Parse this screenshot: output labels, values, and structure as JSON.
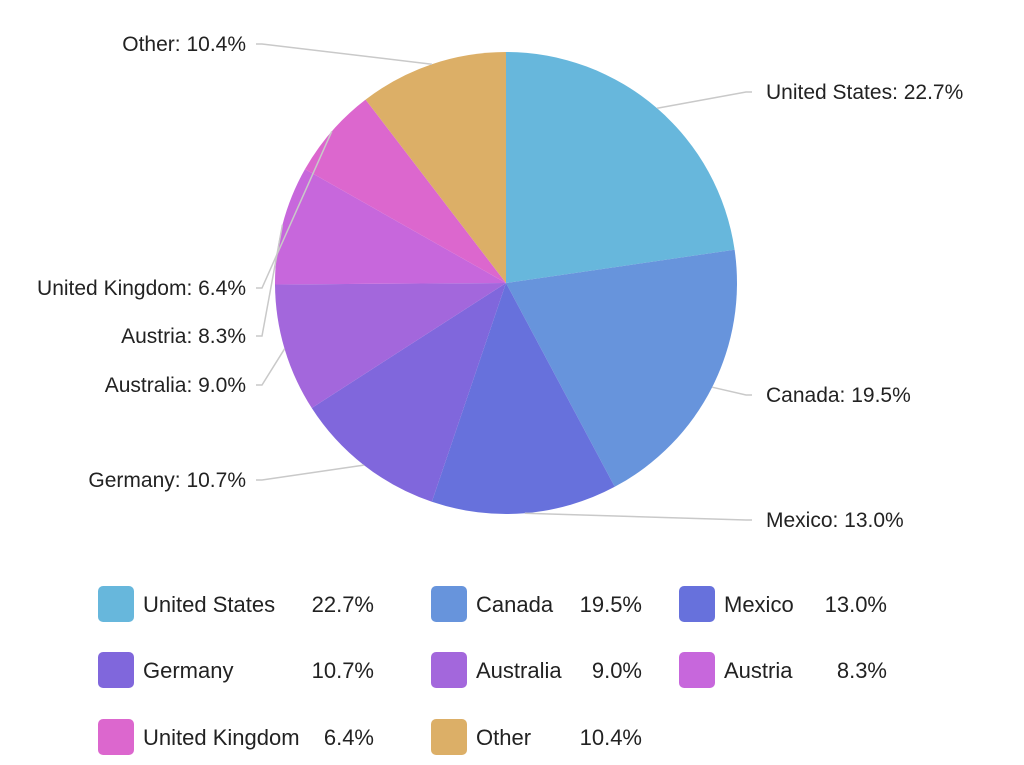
{
  "chart_data": {
    "type": "pie",
    "title": "",
    "start_angle_deg": 0,
    "direction": "clockwise",
    "legend": {
      "position": "bottom",
      "columns": 3
    },
    "slices": [
      {
        "name": "United States",
        "value": 22.7,
        "label": "United States: 22.7%",
        "legend_value": "22.7%",
        "color": "#67b7dc"
      },
      {
        "name": "Canada",
        "value": 19.5,
        "label": "Canada: 19.5%",
        "legend_value": "19.5%",
        "color": "#6794dc"
      },
      {
        "name": "Mexico",
        "value": 13.0,
        "label": "Mexico: 13.0%",
        "legend_value": "13.0%",
        "color": "#6771dc"
      },
      {
        "name": "Germany",
        "value": 10.7,
        "label": "Germany: 10.7%",
        "legend_value": "10.7%",
        "color": "#8067dc"
      },
      {
        "name": "Australia",
        "value": 9.0,
        "label": "Australia: 9.0%",
        "legend_value": "9.0%",
        "color": "#a367dc"
      },
      {
        "name": "Austria",
        "value": 8.3,
        "label": "Austria: 8.3%",
        "legend_value": "8.3%",
        "color": "#c767dc"
      },
      {
        "name": "United Kingdom",
        "value": 6.4,
        "label": "United Kingdom: 6.4%",
        "legend_value": "6.4%",
        "color": "#dc67ce"
      },
      {
        "name": "Other",
        "value": 10.4,
        "label": "Other: 10.4%",
        "legend_value": "10.4%",
        "color": "#dcaf67"
      }
    ]
  }
}
